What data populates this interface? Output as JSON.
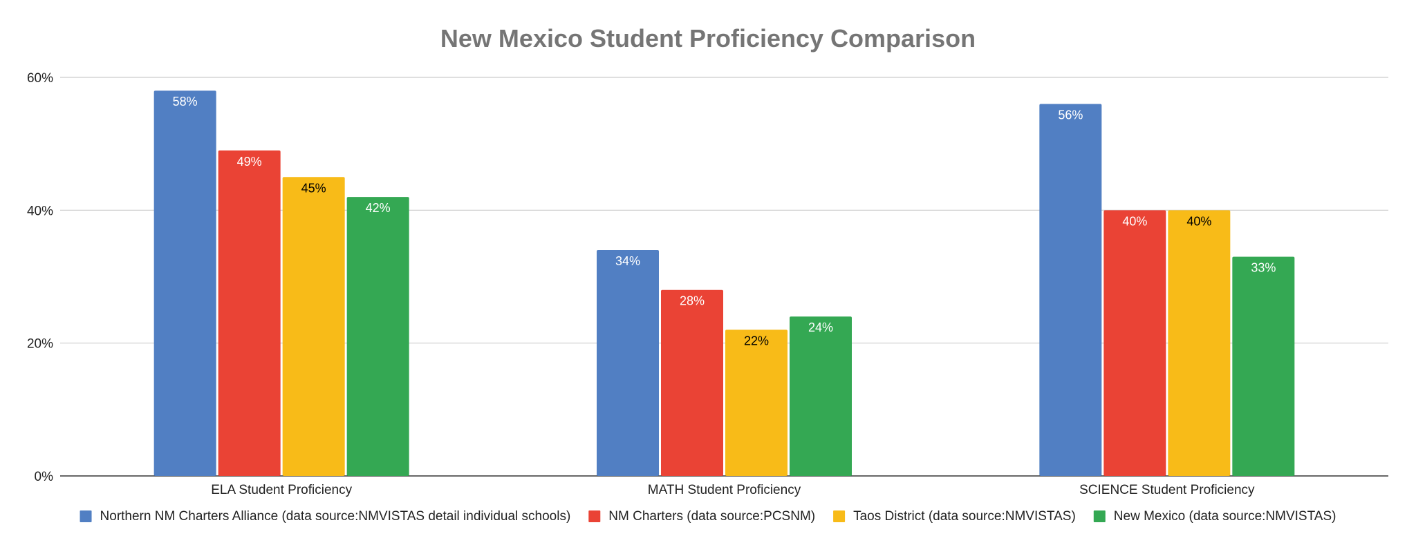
{
  "chart_data": {
    "type": "bar",
    "title": "New Mexico Student Proficiency Comparison",
    "xlabel": "",
    "ylabel": "",
    "ylim": [
      0,
      60
    ],
    "yticks": [
      "0%",
      "20%",
      "40%",
      "60%"
    ],
    "ytick_values": [
      0,
      20,
      40,
      60
    ],
    "grid": true,
    "legend_position": "bottom",
    "categories": [
      "ELA Student Proficiency",
      "MATH Student Proficiency",
      "SCIENCE Student Proficiency"
    ],
    "series": [
      {
        "name": "Northern NM Charters Alliance (data source:NMVISTAS detail individual schools)",
        "color": "#517fc3",
        "label_color": "#ffffff",
        "values": [
          58,
          34,
          56
        ],
        "labels": [
          "58%",
          "34%",
          "56%"
        ]
      },
      {
        "name": "NM Charters (data source:PCSNM)",
        "color": "#ea4335",
        "label_color": "#ffffff",
        "values": [
          49,
          28,
          40
        ],
        "labels": [
          "49%",
          "28%",
          "40%"
        ]
      },
      {
        "name": "Taos District (data source:NMVISTAS)",
        "color": "#f8bb18",
        "label_color": "#000000",
        "values": [
          45,
          22,
          40
        ],
        "labels": [
          "45%",
          "22%",
          "40%"
        ]
      },
      {
        "name": "New Mexico (data source:NMVISTAS)",
        "color": "#34a853",
        "label_color": "#ffffff",
        "values": [
          42,
          24,
          33
        ],
        "labels": [
          "42%",
          "24%",
          "33%"
        ]
      }
    ]
  }
}
